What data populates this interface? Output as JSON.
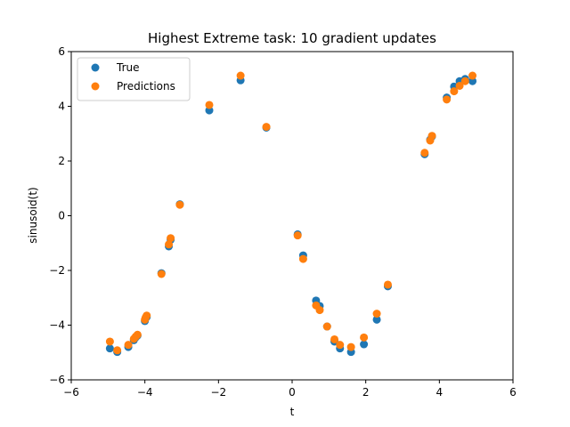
{
  "chart_data": {
    "type": "scatter",
    "title": "Highest Extreme task: 10 gradient updates",
    "xlabel": "t",
    "ylabel": "sinusoid(t)",
    "xlim": [
      -6,
      6
    ],
    "ylim": [
      -6,
      6
    ],
    "xticks": [
      -6,
      -4,
      -2,
      0,
      2,
      4,
      6
    ],
    "yticks": [
      -6,
      -4,
      -2,
      0,
      2,
      4,
      6
    ],
    "grid": false,
    "legend_position": "top-left",
    "series": [
      {
        "name": "True",
        "color": "#1f77b4",
        "points": [
          [
            -4.95,
            -4.85
          ],
          [
            -4.75,
            -4.98
          ],
          [
            -4.45,
            -4.8
          ],
          [
            -4.3,
            -4.55
          ],
          [
            -4.25,
            -4.45
          ],
          [
            -4.2,
            -4.38
          ],
          [
            -4.0,
            -3.85
          ],
          [
            -3.98,
            -3.75
          ],
          [
            -3.95,
            -3.7
          ],
          [
            -3.55,
            -2.1
          ],
          [
            -3.35,
            -1.12
          ],
          [
            -3.3,
            -0.88
          ],
          [
            -3.05,
            0.42
          ],
          [
            -2.25,
            3.85
          ],
          [
            -1.4,
            4.95
          ],
          [
            -0.7,
            3.22
          ],
          [
            0.15,
            -0.68
          ],
          [
            0.3,
            -1.45
          ],
          [
            0.65,
            -3.1
          ],
          [
            0.75,
            -3.3
          ],
          [
            0.95,
            -4.05
          ],
          [
            1.15,
            -4.6
          ],
          [
            1.3,
            -4.85
          ],
          [
            1.6,
            -4.98
          ],
          [
            1.95,
            -4.7
          ],
          [
            2.3,
            -3.8
          ],
          [
            2.6,
            -2.58
          ],
          [
            3.6,
            2.25
          ],
          [
            3.75,
            2.78
          ],
          [
            3.8,
            2.9
          ],
          [
            4.2,
            4.32
          ],
          [
            4.4,
            4.72
          ],
          [
            4.55,
            4.92
          ],
          [
            4.7,
            5.0
          ],
          [
            4.9,
            4.92
          ]
        ]
      },
      {
        "name": "Predictions",
        "color": "#ff7f0e",
        "points": [
          [
            -4.95,
            -4.6
          ],
          [
            -4.75,
            -4.92
          ],
          [
            -4.45,
            -4.72
          ],
          [
            -4.3,
            -4.5
          ],
          [
            -4.25,
            -4.42
          ],
          [
            -4.2,
            -4.35
          ],
          [
            -4.0,
            -3.8
          ],
          [
            -3.98,
            -3.72
          ],
          [
            -3.95,
            -3.65
          ],
          [
            -3.55,
            -2.13
          ],
          [
            -3.35,
            -1.05
          ],
          [
            -3.3,
            -0.82
          ],
          [
            -3.05,
            0.4
          ],
          [
            -2.25,
            4.05
          ],
          [
            -1.4,
            5.12
          ],
          [
            -0.7,
            3.25
          ],
          [
            0.15,
            -0.72
          ],
          [
            0.3,
            -1.58
          ],
          [
            0.65,
            -3.28
          ],
          [
            0.75,
            -3.45
          ],
          [
            0.95,
            -4.05
          ],
          [
            1.15,
            -4.52
          ],
          [
            1.3,
            -4.72
          ],
          [
            1.6,
            -4.8
          ],
          [
            1.95,
            -4.45
          ],
          [
            2.3,
            -3.58
          ],
          [
            2.6,
            -2.52
          ],
          [
            3.6,
            2.3
          ],
          [
            3.75,
            2.75
          ],
          [
            3.8,
            2.92
          ],
          [
            4.2,
            4.25
          ],
          [
            4.4,
            4.55
          ],
          [
            4.55,
            4.75
          ],
          [
            4.7,
            4.92
          ],
          [
            4.9,
            5.12
          ]
        ]
      }
    ]
  }
}
